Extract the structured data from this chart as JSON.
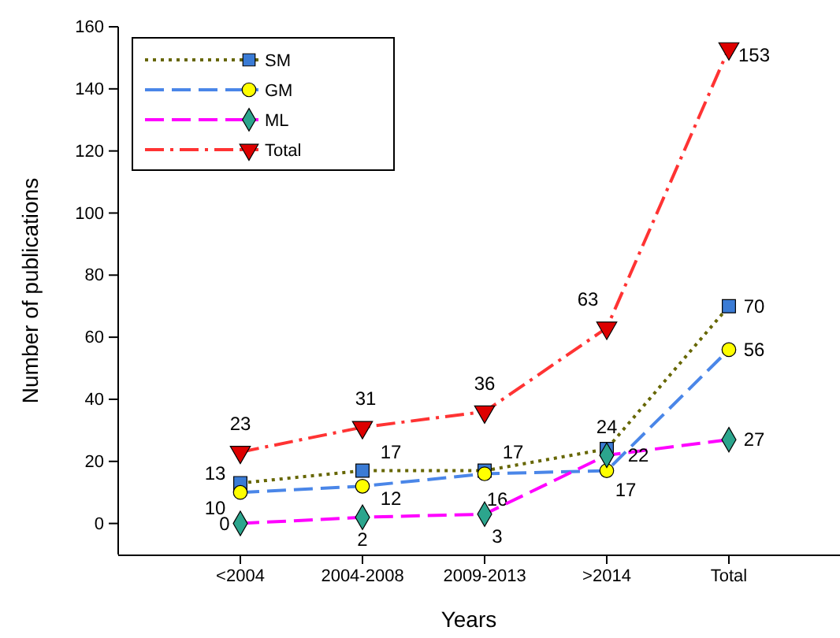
{
  "chart_data": {
    "type": "line",
    "xlabel": "Years",
    "ylabel": "Number of publications",
    "categories": [
      "<2004",
      "2004-2008",
      "2009-2013",
      ">2014",
      "Total"
    ],
    "ylim": [
      -10,
      160
    ],
    "yticks": [
      0,
      20,
      40,
      60,
      80,
      100,
      120,
      140,
      160
    ],
    "grid": false,
    "legend": "top left",
    "data_labels": true,
    "series": [
      {
        "name": "SM",
        "color": "#666600",
        "colors": [
          "#3a7bd5",
          "#3a7bd5",
          "#3a7bd5",
          "#3a7bd5",
          "#3a7bd5"
        ],
        "marker": "square",
        "line_style": "dotted",
        "values": [
          13,
          17,
          17,
          24,
          70
        ]
      },
      {
        "name": "GM",
        "color": "#4a86e8",
        "colors": [
          "#ffff00",
          "#ffff00",
          "#ffff00",
          "#ffff00",
          "#ffff00"
        ],
        "marker": "circle",
        "line_style": "dashed",
        "values": [
          10,
          12,
          16,
          17,
          56
        ]
      },
      {
        "name": "ML",
        "color": "#ff00ff",
        "colors": [
          "#2ca58d",
          "#2ca58d",
          "#2ca58d",
          "#2ca58d",
          "#2ca58d"
        ],
        "marker": "diamond",
        "line_style": "dashed",
        "values": [
          0,
          2,
          3,
          22,
          27
        ]
      },
      {
        "name": "Total",
        "color": "#ff3333",
        "colors": [
          "#dd0000",
          "#dd0000",
          "#dd0000",
          "#dd0000",
          "#dd0000"
        ],
        "marker": "triangle",
        "line_style": "dashed",
        "values": [
          23,
          31,
          36,
          63,
          153
        ]
      }
    ]
  }
}
